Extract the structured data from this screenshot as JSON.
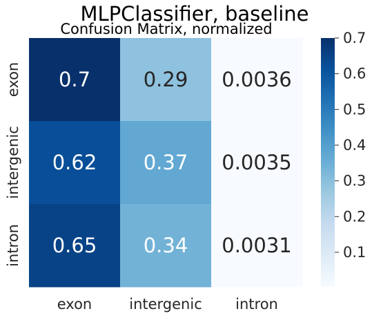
{
  "chart_data": {
    "type": "heatmap",
    "title": "MLPClassifier, baseline",
    "subtitle": "Confusion Matrix, normalized",
    "row_labels": [
      "exon",
      "intergenic",
      "intron"
    ],
    "col_labels": [
      "exon",
      "intergenic",
      "intron"
    ],
    "values": [
      [
        0.7,
        0.29,
        0.0036
      ],
      [
        0.62,
        0.37,
        0.0035
      ],
      [
        0.65,
        0.34,
        0.0031
      ]
    ],
    "value_labels": [
      [
        "0.7",
        "0.29",
        "0.0036"
      ],
      [
        "0.62",
        "0.37",
        "0.0035"
      ],
      [
        "0.65",
        "0.34",
        "0.0031"
      ]
    ],
    "colorbar": {
      "colormap": "Blues",
      "vmin": 0.0031,
      "vmax": 0.7,
      "ticks": [
        0.1,
        0.2,
        0.3,
        0.4,
        0.5,
        0.6,
        0.7
      ],
      "tick_labels": [
        "0.1",
        "0.2",
        "0.3",
        "0.4",
        "0.5",
        "0.6",
        "0.7"
      ]
    }
  }
}
